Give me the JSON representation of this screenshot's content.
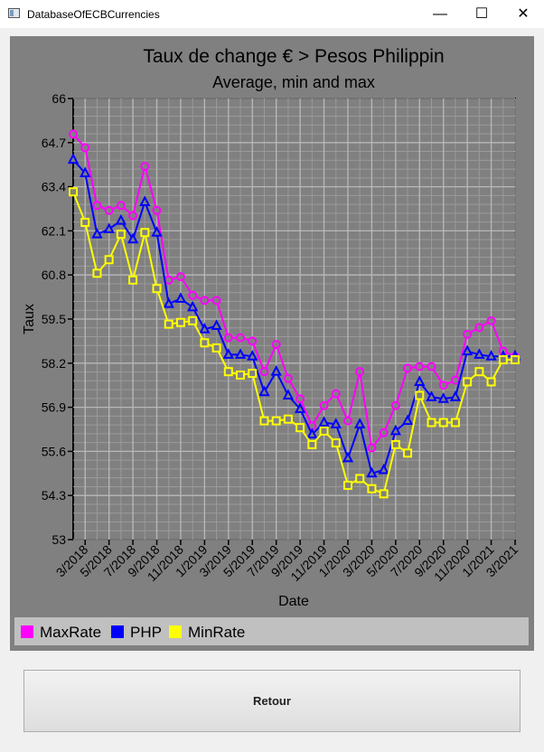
{
  "window": {
    "title": "DatabaseOfECBCurrencies",
    "minimize_glyph": "—",
    "maximize_glyph": "☐",
    "close_glyph": "✕"
  },
  "button": {
    "retour_label": "Retour"
  },
  "colors": {
    "maxrate": "#ff00ff",
    "php": "#0000ff",
    "minrate": "#ffff00",
    "panel": "#808080",
    "legend_bg": "#c0c0c0"
  },
  "chart_data": {
    "type": "line",
    "title": "Taux de change € > Pesos Philippin",
    "subtitle": "Average, min and max",
    "xlabel": "Date",
    "ylabel": "Taux",
    "ylim": [
      53,
      66
    ],
    "yticks": [
      "53",
      "54.3",
      "55.6",
      "56.9",
      "58.2",
      "59.5",
      "60.8",
      "62.1",
      "63.4",
      "64.7",
      "66"
    ],
    "xticks": [
      "3/2018",
      "5/2018",
      "7/2018",
      "9/2018",
      "11/2018",
      "1/2019",
      "3/2019",
      "5/2019",
      "7/2019",
      "9/2019",
      "11/2019",
      "1/2020",
      "3/2020",
      "5/2020",
      "7/2020",
      "9/2020",
      "11/2020",
      "1/2021",
      "3/2021"
    ],
    "grid": true,
    "legend_position": "bottom",
    "x": [
      "2/2018",
      "3/2018",
      "4/2018",
      "5/2018",
      "6/2018",
      "7/2018",
      "8/2018",
      "9/2018",
      "10/2018",
      "11/2018",
      "12/2018",
      "1/2019",
      "2/2019",
      "3/2019",
      "4/2019",
      "5/2019",
      "6/2019",
      "7/2019",
      "8/2019",
      "9/2019",
      "10/2019",
      "11/2019",
      "12/2019",
      "1/2020",
      "2/2020",
      "3/2020",
      "4/2020",
      "5/2020",
      "6/2020",
      "7/2020",
      "8/2020",
      "9/2020",
      "10/2020",
      "11/2020",
      "12/2020",
      "1/2021",
      "2/2021",
      "3/2021"
    ],
    "series": [
      {
        "name": "MaxRate",
        "color": "#ff00ff",
        "marker": "circle",
        "values": [
          64.95,
          64.55,
          62.85,
          62.7,
          62.85,
          62.55,
          64.0,
          62.7,
          60.65,
          60.75,
          60.2,
          60.05,
          60.05,
          58.95,
          58.95,
          58.85,
          57.95,
          58.75,
          57.75,
          57.15,
          56.35,
          56.95,
          57.3,
          56.5,
          57.95,
          55.7,
          56.15,
          56.95,
          58.05,
          58.1,
          58.1,
          57.55,
          57.7,
          59.05,
          59.25,
          59.45,
          58.55,
          58.4
        ]
      },
      {
        "name": "PHP",
        "color": "#0000ff",
        "marker": "triangle",
        "values": [
          64.2,
          63.8,
          62.0,
          62.15,
          62.4,
          61.85,
          62.95,
          62.05,
          59.95,
          60.1,
          59.85,
          59.2,
          59.3,
          58.45,
          58.45,
          58.4,
          57.35,
          57.95,
          57.25,
          56.85,
          56.1,
          56.45,
          56.4,
          55.4,
          56.4,
          54.95,
          55.05,
          56.2,
          56.5,
          57.65,
          57.2,
          57.15,
          57.2,
          58.55,
          58.45,
          58.4,
          58.4,
          58.4
        ]
      },
      {
        "name": "MinRate",
        "color": "#ffff00",
        "marker": "square",
        "values": [
          63.25,
          62.35,
          60.85,
          61.25,
          62.0,
          60.65,
          62.05,
          60.4,
          59.35,
          59.4,
          59.45,
          58.8,
          58.65,
          57.95,
          57.85,
          57.9,
          56.5,
          56.5,
          56.55,
          56.3,
          55.8,
          56.2,
          55.85,
          54.6,
          54.8,
          54.5,
          54.35,
          55.8,
          55.55,
          57.25,
          56.45,
          56.45,
          56.45,
          57.65,
          57.95,
          57.65,
          58.3,
          58.3
        ]
      }
    ]
  }
}
